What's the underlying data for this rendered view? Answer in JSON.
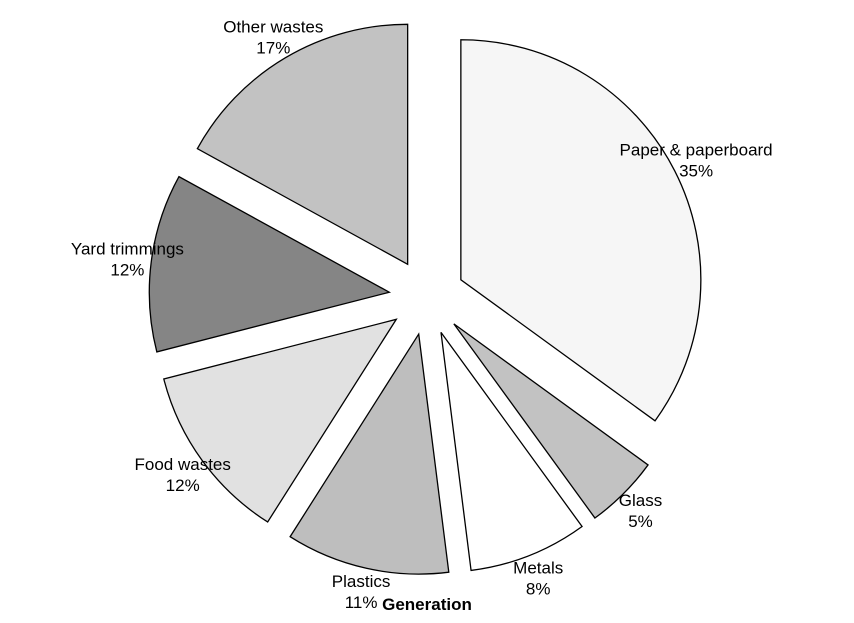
{
  "chart_data": {
    "type": "pie",
    "title": "Generation",
    "start_angle_deg": 0,
    "direction": "clockwise",
    "exploded": true,
    "slices": [
      {
        "label": "Paper & paperboard",
        "value": 35,
        "value_label": "35%",
        "color": "#f6f6f6"
      },
      {
        "label": "Glass",
        "value": 5,
        "value_label": "5%",
        "color": "#c2c2c2"
      },
      {
        "label": "Metals",
        "value": 8,
        "value_label": "8%",
        "color": "#ffffff"
      },
      {
        "label": "Plastics",
        "value": 11,
        "value_label": "11%",
        "color": "#bebebe"
      },
      {
        "label": "Food wastes",
        "value": 12,
        "value_label": "12%",
        "color": "#e1e1e1"
      },
      {
        "label": "Yard trimmings",
        "value": 12,
        "value_label": "12%",
        "color": "#858585"
      },
      {
        "label": "Other wastes",
        "value": 17,
        "value_label": "17%",
        "color": "#c2c2c2"
      }
    ]
  }
}
